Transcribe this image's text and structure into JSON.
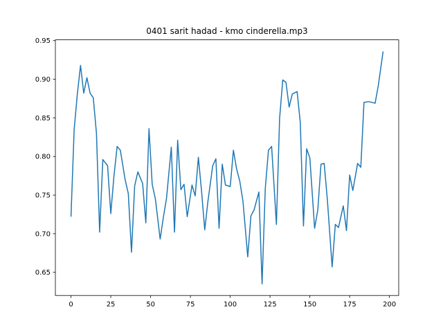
{
  "chart_data": {
    "type": "line",
    "title": "0401 sarit hadad - kmo cinderella.mp3",
    "x": [
      0,
      2,
      4,
      6,
      8,
      10,
      12,
      14,
      16,
      18,
      20,
      23,
      25,
      27,
      29,
      31,
      34,
      36,
      38,
      40,
      42,
      45,
      47,
      49,
      51,
      53,
      56,
      58,
      60,
      63,
      65,
      67,
      69,
      71,
      73,
      76,
      78,
      80,
      82,
      84,
      86,
      89,
      91,
      93,
      95,
      97,
      100,
      102,
      104,
      106,
      108,
      111,
      113,
      115,
      118,
      120,
      122,
      124,
      126,
      129,
      131,
      133,
      135,
      137,
      139,
      142,
      144,
      146,
      148,
      150,
      153,
      155,
      157,
      159,
      161,
      164,
      166,
      168,
      171,
      173,
      175,
      177,
      180,
      182,
      184,
      187,
      189,
      191,
      193,
      196
    ],
    "series": [
      {
        "color": "#1f77b4",
        "values": [
          0.722,
          0.835,
          0.881,
          0.918,
          0.882,
          0.902,
          0.882,
          0.876,
          0.83,
          0.702,
          0.796,
          0.788,
          0.726,
          0.775,
          0.813,
          0.808,
          0.77,
          0.752,
          0.676,
          0.762,
          0.78,
          0.765,
          0.714,
          0.836,
          0.764,
          0.745,
          0.693,
          0.721,
          0.746,
          0.812,
          0.702,
          0.821,
          0.757,
          0.764,
          0.722,
          0.763,
          0.749,
          0.799,
          0.755,
          0.705,
          0.742,
          0.788,
          0.797,
          0.707,
          0.79,
          0.763,
          0.761,
          0.808,
          0.784,
          0.768,
          0.742,
          0.67,
          0.723,
          0.731,
          0.754,
          0.635,
          0.758,
          0.808,
          0.813,
          0.712,
          0.849,
          0.899,
          0.896,
          0.864,
          0.881,
          0.884,
          0.844,
          0.71,
          0.81,
          0.798,
          0.707,
          0.731,
          0.79,
          0.791,
          0.744,
          0.657,
          0.712,
          0.708,
          0.736,
          0.704,
          0.776,
          0.756,
          0.791,
          0.786,
          0.87,
          0.871,
          0.87,
          0.869,
          0.892,
          0.936
        ]
      }
    ],
    "xlim": [
      -9.8,
      205.8
    ],
    "ylim": [
      0.62,
      0.951
    ],
    "xticks": [
      0,
      25,
      50,
      75,
      100,
      125,
      150,
      175,
      200
    ],
    "yticks": [
      0.65,
      {
        "value": 0.7,
        "label": "0.70"
      },
      0.75,
      {
        "value": 0.8,
        "label": "0.80"
      },
      0.85,
      {
        "value": 0.9,
        "label": "0.90"
      },
      0.95
    ]
  }
}
